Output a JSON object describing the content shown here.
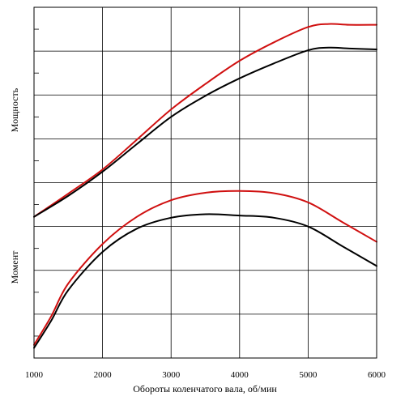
{
  "chart_data": {
    "type": "line",
    "xlabel": "Обороты коленчатого вала, об/мин",
    "ylabels": [
      "Мощность",
      "Момент"
    ],
    "x_ticks": [
      1000,
      2000,
      3000,
      4000,
      5000,
      6000
    ],
    "xlim": [
      1000,
      6000
    ],
    "ylim": [
      0,
      8
    ],
    "y_tick_labels_shown": false,
    "grid": true,
    "series": [
      {
        "color": "#d01010",
        "x": [
          1000,
          1500,
          2000,
          2500,
          3000,
          3500,
          4000,
          4500,
          5000,
          5300,
          5600,
          6000
        ],
        "y": [
          3.22,
          3.75,
          4.3,
          4.98,
          5.67,
          6.25,
          6.78,
          7.2,
          7.55,
          7.62,
          7.6,
          7.6
        ]
      },
      {
        "color": "#000000",
        "x": [
          1000,
          1500,
          2000,
          2500,
          3000,
          3500,
          4000,
          4500,
          5000,
          5300,
          5600,
          6000
        ],
        "y": [
          3.22,
          3.7,
          4.25,
          4.88,
          5.5,
          5.98,
          6.38,
          6.72,
          7.02,
          7.08,
          7.06,
          7.04
        ]
      },
      {
        "color": "#d01010",
        "x": [
          1000,
          1250,
          1500,
          2000,
          2500,
          3000,
          3500,
          4000,
          4500,
          5000,
          5500,
          6000
        ],
        "y": [
          0.3,
          0.95,
          1.7,
          2.6,
          3.22,
          3.6,
          3.77,
          3.81,
          3.76,
          3.55,
          3.1,
          2.65
        ]
      },
      {
        "color": "#000000",
        "x": [
          1000,
          1250,
          1500,
          2000,
          2500,
          3000,
          3500,
          4000,
          4500,
          5000,
          5500,
          6000
        ],
        "y": [
          0.23,
          0.85,
          1.55,
          2.42,
          2.95,
          3.2,
          3.28,
          3.25,
          3.2,
          3.0,
          2.55,
          2.1
        ]
      }
    ]
  }
}
